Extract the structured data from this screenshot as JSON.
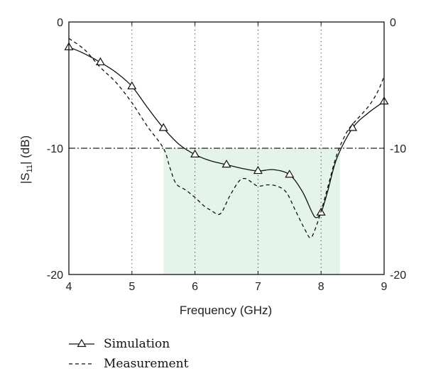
{
  "chart_data": {
    "type": "line",
    "title": "",
    "xlabel": "Frequency (GHz)",
    "ylabel_main": "|S",
    "ylabel_sub": "11",
    "ylabel_tail": "| (dB)",
    "xlim": [
      4,
      9
    ],
    "ylim": [
      -20,
      0
    ],
    "x_ticks": [
      "4",
      "5",
      "6",
      "7",
      "8",
      "9"
    ],
    "y_ticks_left": [
      "0",
      "-10",
      "-20"
    ],
    "y_ticks_right": [
      "0",
      "-10",
      "-20"
    ],
    "y_tick_values": [
      0,
      -10,
      -20
    ],
    "vertical_grid_x": [
      5,
      6,
      7,
      8
    ],
    "grid": "vertical dotted",
    "reference_line_y": -10,
    "shaded_band": {
      "x": [
        5.5,
        8.3
      ],
      "y": [
        -20,
        -10
      ],
      "color": "#e4f4ea"
    },
    "legend_position": "bottom-left, below plot",
    "series": [
      {
        "name": "Simulation",
        "style": "solid-triangle",
        "color": "#111111",
        "points": [
          [
            4.0,
            -2.0
          ],
          [
            4.2,
            -2.4
          ],
          [
            4.5,
            -3.2
          ],
          [
            4.75,
            -4.0
          ],
          [
            5.0,
            -5.1
          ],
          [
            5.25,
            -6.8
          ],
          [
            5.5,
            -8.4
          ],
          [
            5.75,
            -9.7
          ],
          [
            6.0,
            -10.5
          ],
          [
            6.25,
            -11.0
          ],
          [
            6.5,
            -11.3
          ],
          [
            6.75,
            -11.6
          ],
          [
            7.0,
            -11.8
          ],
          [
            7.25,
            -11.7
          ],
          [
            7.5,
            -12.1
          ],
          [
            7.7,
            -13.4
          ],
          [
            7.85,
            -15.0
          ],
          [
            7.92,
            -15.5
          ],
          [
            8.0,
            -15.1
          ],
          [
            8.1,
            -13.5
          ],
          [
            8.25,
            -10.8
          ],
          [
            8.5,
            -8.4
          ],
          [
            8.75,
            -7.2
          ],
          [
            9.0,
            -6.3
          ]
        ],
        "markers": [
          [
            4.0,
            -2.0
          ],
          [
            4.5,
            -3.2
          ],
          [
            5.0,
            -5.1
          ],
          [
            5.5,
            -8.4
          ],
          [
            6.0,
            -10.5
          ],
          [
            6.5,
            -11.3
          ],
          [
            7.0,
            -11.8
          ],
          [
            7.5,
            -12.1
          ],
          [
            8.0,
            -15.1
          ],
          [
            8.5,
            -8.4
          ],
          [
            9.0,
            -6.3
          ]
        ]
      },
      {
        "name": "Measurement",
        "style": "dashed",
        "color": "#111111",
        "points": [
          [
            4.0,
            -1.3
          ],
          [
            4.25,
            -2.2
          ],
          [
            4.5,
            -3.6
          ],
          [
            4.75,
            -4.8
          ],
          [
            5.0,
            -6.4
          ],
          [
            5.25,
            -8.3
          ],
          [
            5.5,
            -10.0
          ],
          [
            5.6,
            -11.5
          ],
          [
            5.7,
            -12.8
          ],
          [
            5.85,
            -13.3
          ],
          [
            6.0,
            -13.9
          ],
          [
            6.15,
            -14.6
          ],
          [
            6.25,
            -14.9
          ],
          [
            6.4,
            -15.2
          ],
          [
            6.55,
            -13.8
          ],
          [
            6.7,
            -12.6
          ],
          [
            6.8,
            -12.4
          ],
          [
            6.9,
            -12.7
          ],
          [
            7.0,
            -13.0
          ],
          [
            7.15,
            -12.9
          ],
          [
            7.3,
            -13.0
          ],
          [
            7.45,
            -13.5
          ],
          [
            7.6,
            -15.0
          ],
          [
            7.75,
            -16.5
          ],
          [
            7.83,
            -17.1
          ],
          [
            7.9,
            -16.5
          ],
          [
            8.0,
            -15.0
          ],
          [
            8.1,
            -13.2
          ],
          [
            8.25,
            -10.5
          ],
          [
            8.4,
            -8.8
          ],
          [
            8.5,
            -8.1
          ],
          [
            8.75,
            -6.7
          ],
          [
            8.9,
            -5.5
          ],
          [
            9.0,
            -4.3
          ]
        ]
      }
    ]
  }
}
